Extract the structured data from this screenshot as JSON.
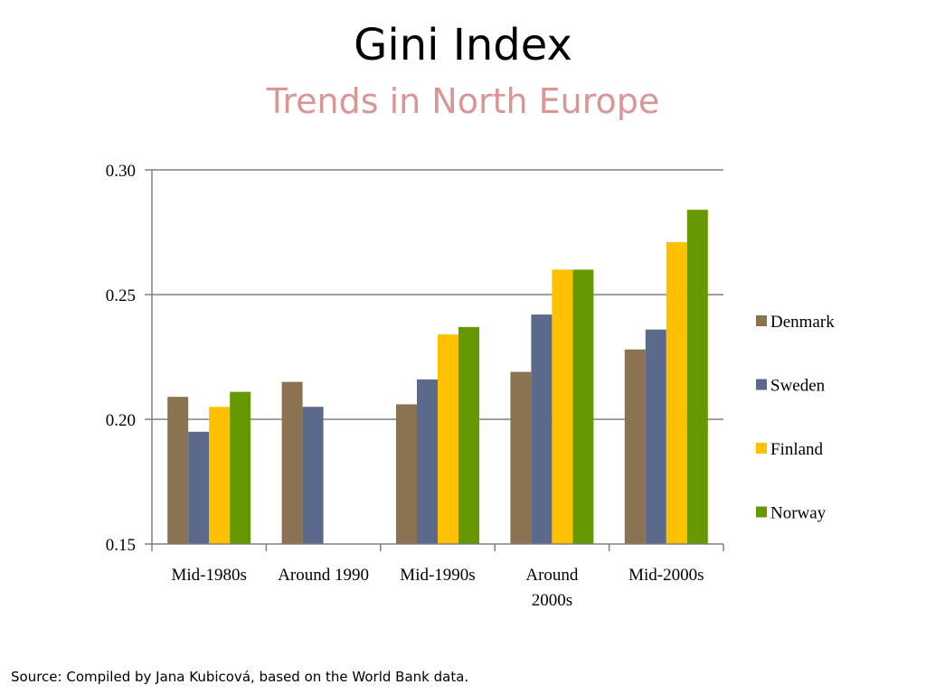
{
  "slide": {
    "title": "Gini Index",
    "subtitle": "Trends in North Europe",
    "source": "Source: Compiled by Jana Kubicová, based on the World Bank data."
  },
  "colors": {
    "subtitle": "#d99694",
    "gridline": "#808080",
    "series": [
      "#8b7352",
      "#5b6a8c",
      "#ffc000",
      "#669900"
    ]
  },
  "chart_data": {
    "type": "bar",
    "categories": [
      [
        "Mid-1980s"
      ],
      [
        "Around 1990"
      ],
      [
        "Mid-1990s"
      ],
      [
        "Around",
        "2000s"
      ],
      [
        "Mid-2000s"
      ]
    ],
    "series": [
      {
        "name": "Denmark",
        "values": [
          0.209,
          0.215,
          0.206,
          0.219,
          0.228
        ]
      },
      {
        "name": "Sweden",
        "values": [
          0.195,
          0.205,
          0.216,
          0.242,
          0.236
        ]
      },
      {
        "name": "Finland",
        "values": [
          0.205,
          null,
          0.234,
          0.26,
          0.271
        ]
      },
      {
        "name": "Norway",
        "values": [
          0.211,
          null,
          0.237,
          0.26,
          0.284
        ]
      }
    ],
    "ylim": [
      0.15,
      0.3
    ],
    "yticks": [
      "0.15",
      "0.20",
      "0.25",
      "0.30"
    ],
    "grid": true,
    "legend": "right"
  }
}
